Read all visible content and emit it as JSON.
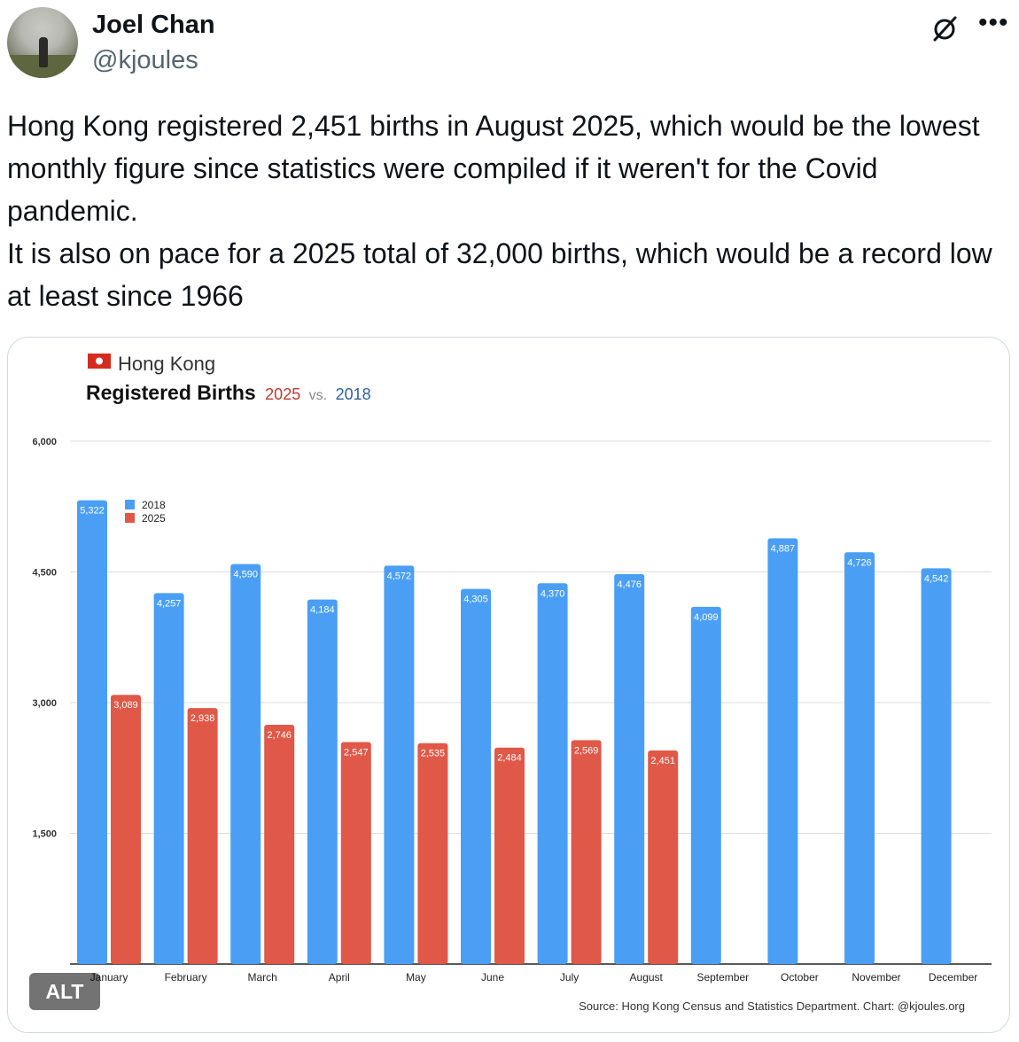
{
  "author": {
    "name": "Joel Chan",
    "handle": "@kjoules"
  },
  "icons": {
    "grok": "grok-icon",
    "more": "more-options-icon"
  },
  "tweet": {
    "line1": "Hong Kong registered 2,451 births in August 2025, which would be the lowest monthly figure since statistics were compiled if it weren't for the Covid pandemic.",
    "line2": "It is also on pace for a 2025 total of 32,000 births, which would be a record low at least since 1966"
  },
  "media": {
    "alt_label": "ALT"
  },
  "colors": {
    "series_2018": "#4a9ff5",
    "series_2025": "#e05848",
    "title_2025": "#c0392b",
    "title_2018": "#2e5fa3"
  },
  "chart_data": {
    "type": "bar",
    "region": "Hong Kong",
    "title": "Registered Births",
    "title_2025": "2025",
    "title_vs": "vs.",
    "title_2018": "2018",
    "source": "Source: Hong Kong Census and Statistics Department. Chart: @kjoules.org",
    "ylim": [
      0,
      6000
    ],
    "yticks": [
      1500,
      3000,
      4500,
      6000
    ],
    "ytick_labels": [
      "1,500",
      "3,000",
      "4,500",
      "6,000"
    ],
    "grid": true,
    "legend_position": "top-left",
    "categories": [
      "January",
      "February",
      "March",
      "April",
      "May",
      "June",
      "July",
      "August",
      "September",
      "October",
      "November",
      "December"
    ],
    "series": [
      {
        "name": "2018",
        "values": [
          5322,
          4257,
          4590,
          4184,
          4572,
          4305,
          4370,
          4476,
          4099,
          4887,
          4726,
          4542
        ],
        "labels": [
          "5,322",
          "4,257",
          "4,590",
          "4,184",
          "4,572",
          "4,305",
          "4,370",
          "4,476",
          "4,099",
          "4,887",
          "4,726",
          "4,542"
        ]
      },
      {
        "name": "2025",
        "values": [
          3089,
          2938,
          2746,
          2547,
          2535,
          2484,
          2569,
          2451,
          null,
          null,
          null,
          null
        ],
        "labels": [
          "3,089",
          "2,938",
          "2,746",
          "2,547",
          "2,535",
          "2,484",
          "2,569",
          "2,451",
          "",
          "",
          "",
          ""
        ]
      }
    ]
  }
}
